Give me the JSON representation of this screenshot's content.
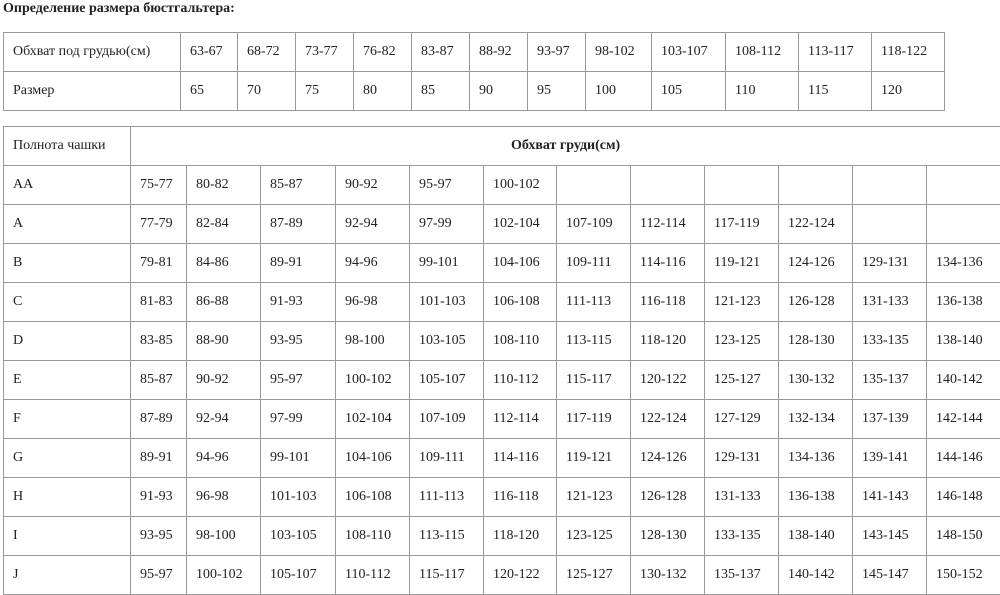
{
  "title": "Определение размера бюстгальтера:",
  "band_table": {
    "row_labels": [
      "Обхват под грудью(см)",
      "Размер"
    ],
    "underbust": [
      "63-67",
      "68-72",
      "73-77",
      "76-82",
      "83-87",
      "88-92",
      "93-97",
      "98-102",
      "103-107",
      "108-112",
      "113-117",
      "118-122"
    ],
    "sizes": [
      "65",
      "70",
      "75",
      "80",
      "85",
      "90",
      "95",
      "100",
      "105",
      "110",
      "115",
      "120"
    ]
  },
  "cup_table": {
    "corner_label": "Полнота чашки",
    "header": "Обхват груди(см)",
    "rows": [
      {
        "cup": "AA",
        "values": [
          "75-77",
          "80-82",
          "85-87",
          "90-92",
          "95-97",
          "100-102",
          "",
          "",
          "",
          "",
          "",
          ""
        ]
      },
      {
        "cup": "A",
        "values": [
          "77-79",
          "82-84",
          "87-89",
          "92-94",
          "97-99",
          "102-104",
          "107-109",
          "112-114",
          "117-119",
          "122-124",
          "",
          ""
        ]
      },
      {
        "cup": "B",
        "values": [
          "79-81",
          "84-86",
          "89-91",
          "94-96",
          "99-101",
          "104-106",
          "109-111",
          "114-116",
          "119-121",
          "124-126",
          "129-131",
          "134-136"
        ]
      },
      {
        "cup": "C",
        "values": [
          "81-83",
          "86-88",
          "91-93",
          "96-98",
          "101-103",
          "106-108",
          "111-113",
          "116-118",
          "121-123",
          "126-128",
          "131-133",
          "136-138"
        ]
      },
      {
        "cup": "D",
        "values": [
          "83-85",
          "88-90",
          "93-95",
          "98-100",
          "103-105",
          "108-110",
          "113-115",
          "118-120",
          "123-125",
          "128-130",
          "133-135",
          "138-140"
        ]
      },
      {
        "cup": "E",
        "values": [
          "85-87",
          "90-92",
          "95-97",
          "100-102",
          "105-107",
          "110-112",
          "115-117",
          "120-122",
          "125-127",
          "130-132",
          "135-137",
          "140-142"
        ]
      },
      {
        "cup": "F",
        "values": [
          "87-89",
          "92-94",
          "97-99",
          "102-104",
          "107-109",
          "112-114",
          "117-119",
          "122-124",
          "127-129",
          "132-134",
          "137-139",
          "142-144"
        ]
      },
      {
        "cup": "G",
        "values": [
          "89-91",
          "94-96",
          "99-101",
          "104-106",
          "109-111",
          "114-116",
          "119-121",
          "124-126",
          "129-131",
          "134-136",
          "139-141",
          "144-146"
        ]
      },
      {
        "cup": "H",
        "values": [
          "91-93",
          "96-98",
          "101-103",
          "106-108",
          "111-113",
          "116-118",
          "121-123",
          "126-128",
          "131-133",
          "136-138",
          "141-143",
          "146-148"
        ]
      },
      {
        "cup": "I",
        "values": [
          "93-95",
          "98-100",
          "103-105",
          "108-110",
          "113-115",
          "118-120",
          "123-125",
          "128-130",
          "133-135",
          "138-140",
          "143-145",
          "148-150"
        ]
      },
      {
        "cup": "J",
        "values": [
          "95-97",
          "100-102",
          "105-107",
          "110-112",
          "115-117",
          "120-122",
          "125-127",
          "130-132",
          "135-137",
          "140-142",
          "145-147",
          "150-152"
        ]
      }
    ]
  }
}
